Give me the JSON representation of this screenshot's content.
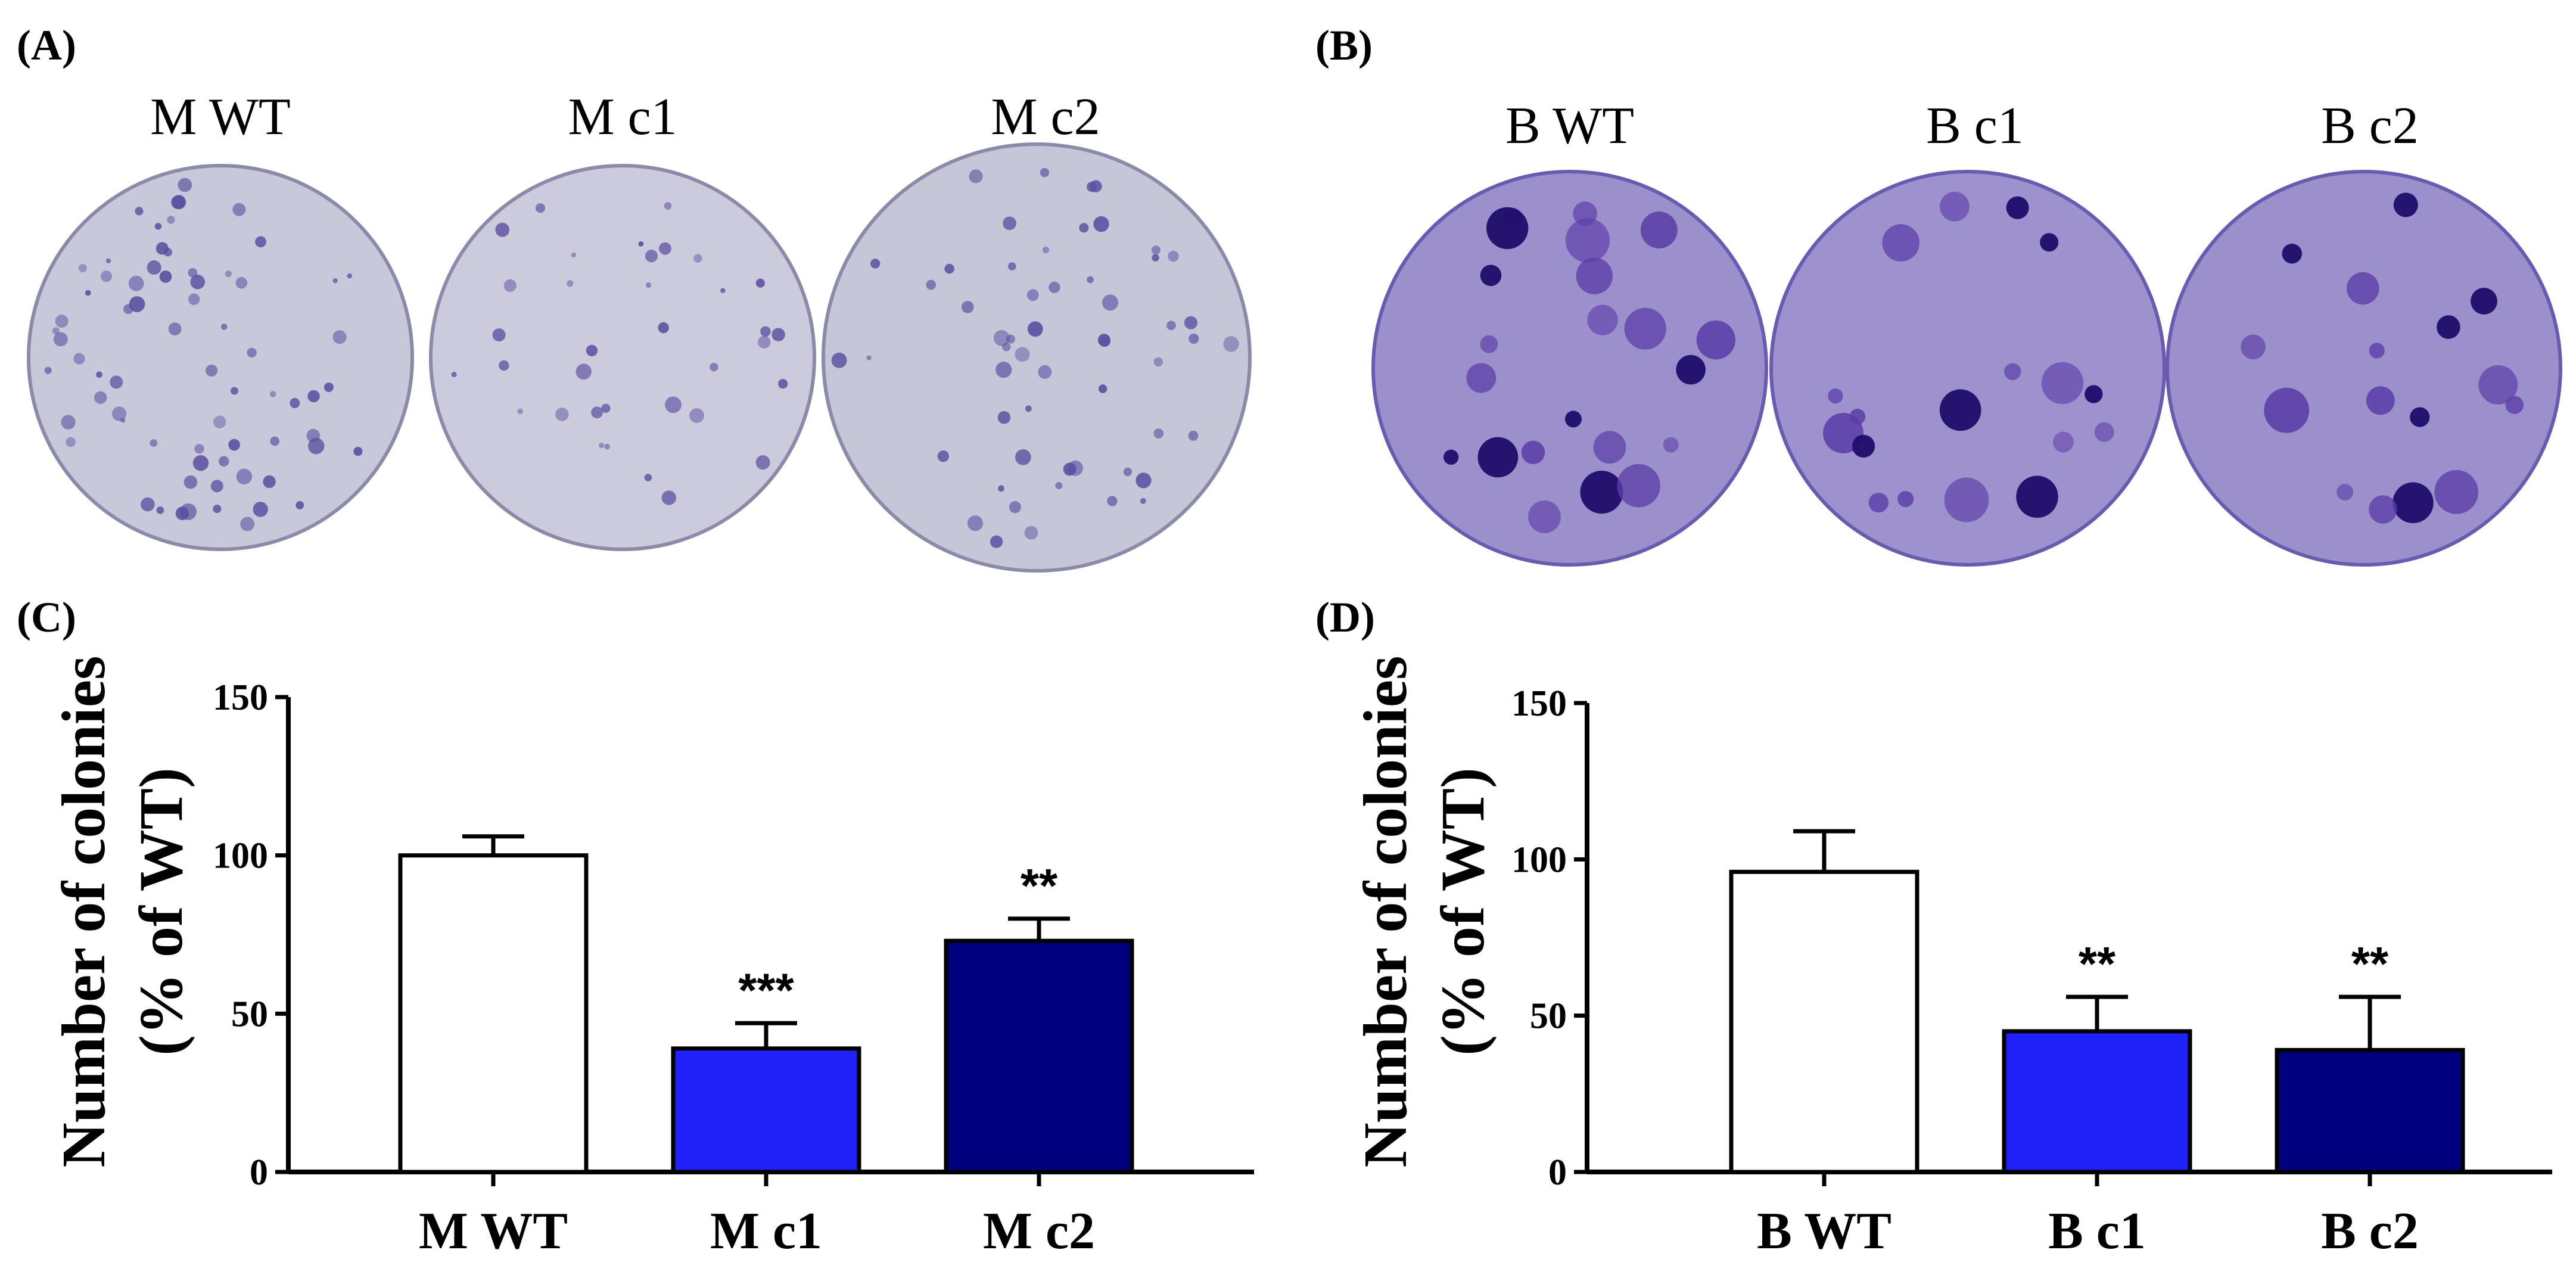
{
  "colors": {
    "mwt": "#ffffff",
    "mc1": "#2020f8",
    "mc2": "#00007f",
    "plate_bg_A": "#c9c9dc",
    "plate_bg_B": "#9b90cc",
    "colony": "#4a3a9a",
    "colony_dark": "#2a1670"
  },
  "panels": {
    "A": {
      "label": "(A)",
      "plates": [
        "M WT",
        "M c1",
        "M c2"
      ]
    },
    "B": {
      "label": "(B)",
      "plates": [
        "B WT",
        "B c1",
        "B c2"
      ]
    },
    "C": {
      "label": "(C)"
    },
    "D": {
      "label": "(D)"
    }
  },
  "chart_data": [
    {
      "panel": "C",
      "type": "bar",
      "categories": [
        "M WT",
        "M c1",
        "M c2"
      ],
      "values": [
        100,
        39,
        73
      ],
      "errors": [
        6,
        8,
        7
      ],
      "significance": [
        "",
        "***",
        "**"
      ],
      "colors": [
        "#ffffff",
        "#2020f8",
        "#00007f"
      ],
      "ylabel_line1": "Number of colonies",
      "ylabel_line2": "(% of WT)",
      "ylim": [
        0,
        150
      ],
      "yticks": [
        0,
        50,
        100,
        150
      ]
    },
    {
      "panel": "D",
      "type": "bar",
      "categories": [
        "B WT",
        "B c1",
        "B c2"
      ],
      "values": [
        96,
        45,
        39
      ],
      "errors": [
        13,
        11,
        17
      ],
      "significance": [
        "",
        "**",
        "**"
      ],
      "colors": [
        "#ffffff",
        "#2020f8",
        "#00007f"
      ],
      "ylabel_line1": "Number of colonies",
      "ylabel_line2": "(% of WT)",
      "ylim": [
        0,
        150
      ],
      "yticks": [
        0,
        50,
        100,
        150
      ]
    }
  ]
}
